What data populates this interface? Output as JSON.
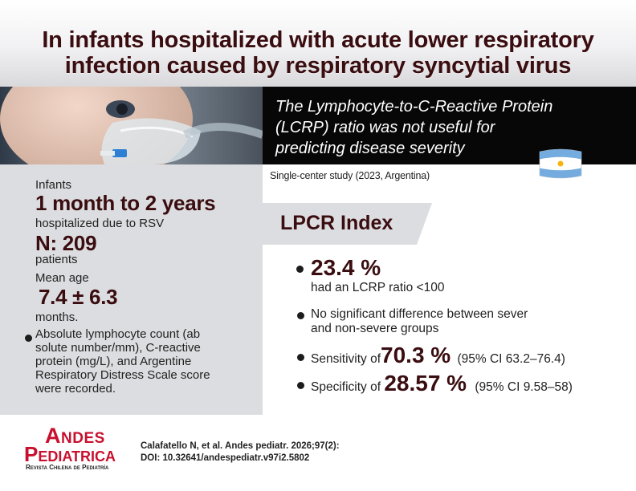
{
  "header": {
    "line1": "In infants hospitalized with acute lower respiratory",
    "line2": "infection caused by respiratory syncytial virus"
  },
  "conclusion": {
    "line1": "The Lymphocyte-to-C-Reactive Protein",
    "line2": "(LCRP) ratio was not useful for",
    "line3": "predicting disease severity"
  },
  "study_note": "Single-center study (2023, Argentina)",
  "population": {
    "infants_label": "Infants",
    "age_range": "1 month to 2 years",
    "hospitalized": "hospitalized due to RSV",
    "n": "N: 209",
    "patients": "patients",
    "mean_age_label": "Mean age",
    "mean_age_value": "7.4 ± 6.3",
    "mean_age_unit": "months.",
    "measures_line1": "Absolute lymphocyte count (ab",
    "measures_line2": "solute number/mm), C-reactive",
    "measures_line3": "protein (mg/L), and Argentine",
    "measures_line4": "Respiratory Distress Scale score",
    "measures_line5": "were recorded."
  },
  "index": {
    "title": "LPCR Index",
    "pct_value": "23.4 %",
    "pct_text": "had an LCRP ratio <100",
    "no_diff_line1": "No significant difference between sever",
    "no_diff_line2": "and non-severe groups",
    "sens_label": "Sensitivity of",
    "sens_value": "70.3 %",
    "sens_ci": "(95% CI 63.2–76.4)",
    "spec_label": "Specificity of",
    "spec_value": "28.57 %",
    "spec_ci": "(95% CI 9.58–58)"
  },
  "logo": {
    "andes": "Andes",
    "pediatrica": "Pediatrica",
    "subtitle": "Revista Chilena de Pediatría"
  },
  "citation": {
    "line1": "Calafatello N, et al. Andes pediatr. 2026;97(2):",
    "line2": "DOI: 10.32641/andespediatr.v97i2.5802"
  },
  "colors": {
    "title": "#3a0d10",
    "panel": "#dcdde0",
    "box": "#070707",
    "logo_red": "#c8102e",
    "flag_blue": "#74acdf",
    "flag_sun": "#f6b40e"
  }
}
